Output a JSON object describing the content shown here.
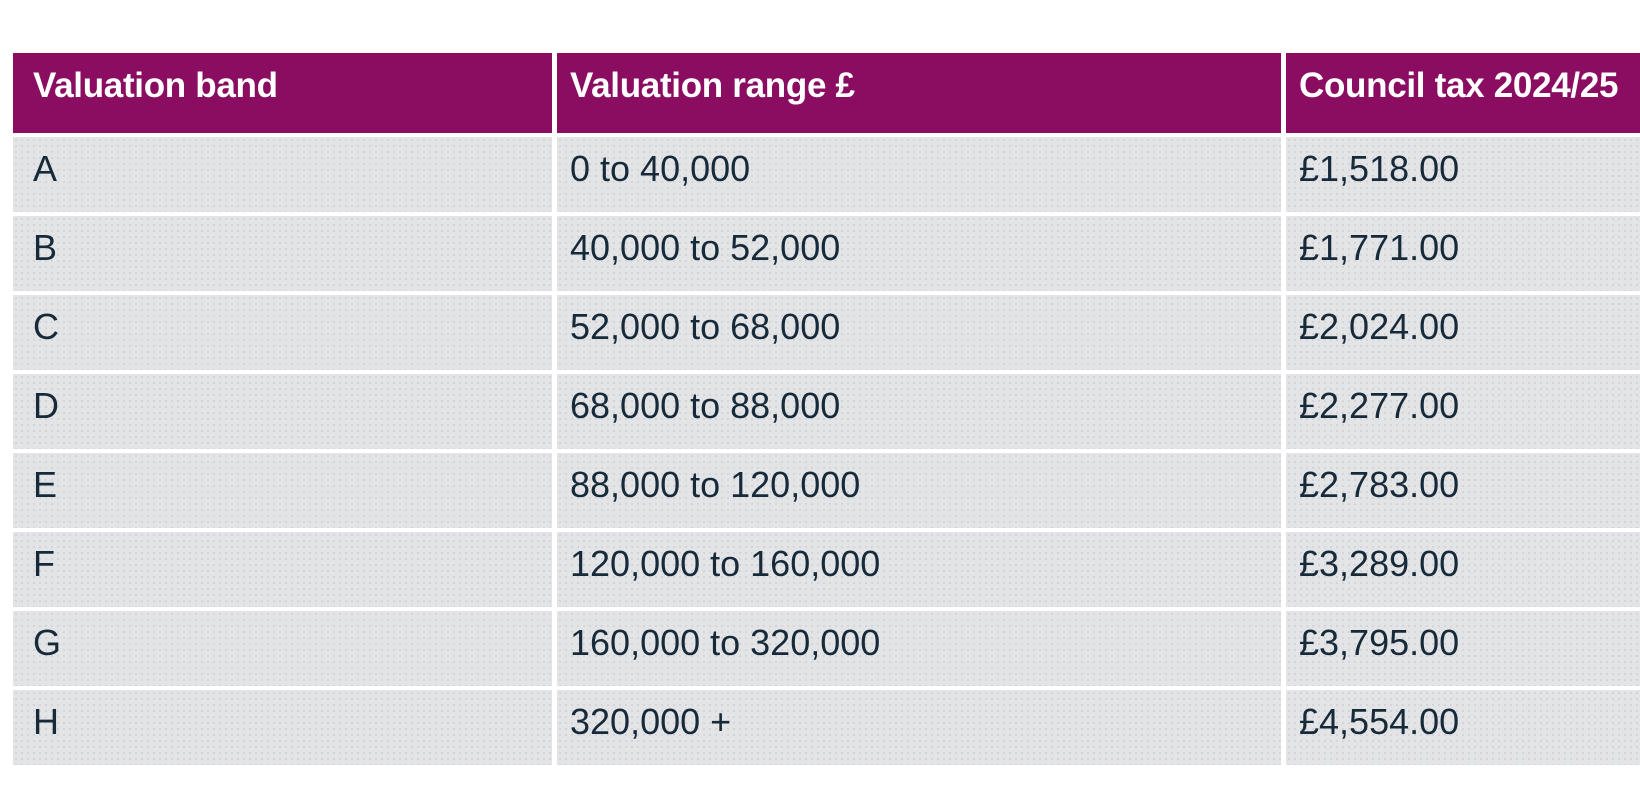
{
  "chart_data": {
    "type": "table",
    "title": "",
    "columns": [
      "Valuation band",
      "Valuation range £",
      "Council tax 2024/25"
    ],
    "rows": [
      {
        "band": "A",
        "range": "0 to 40,000",
        "tax": "£1,518.00"
      },
      {
        "band": "B",
        "range": "40,000 to 52,000",
        "tax": "£1,771.00"
      },
      {
        "band": "C",
        "range": "52,000 to 68,000",
        "tax": "£2,024.00"
      },
      {
        "band": "D",
        "range": "68,000 to 88,000",
        "tax": "£2,277.00"
      },
      {
        "band": "E",
        "range": "88,000 to 120,000",
        "tax": "£2,783.00"
      },
      {
        "band": "F",
        "range": "120,000 to 160,000",
        "tax": "£3,289.00"
      },
      {
        "band": "G",
        "range": "160,000 to 320,000",
        "tax": "£3,795.00"
      },
      {
        "band": "H",
        "range": "320,000 +",
        "tax": "£4,554.00"
      }
    ]
  },
  "table": {
    "header": {
      "band_label": "Valuation band",
      "range_label": "Valuation range £",
      "tax_label": "Council tax 2024/25"
    },
    "colors": {
      "header_bg": "#8a0d61",
      "header_text": "#ffffff",
      "row_bg": "#e3e4e6",
      "body_text": "#172a3a",
      "separator": "#ffffff"
    }
  }
}
